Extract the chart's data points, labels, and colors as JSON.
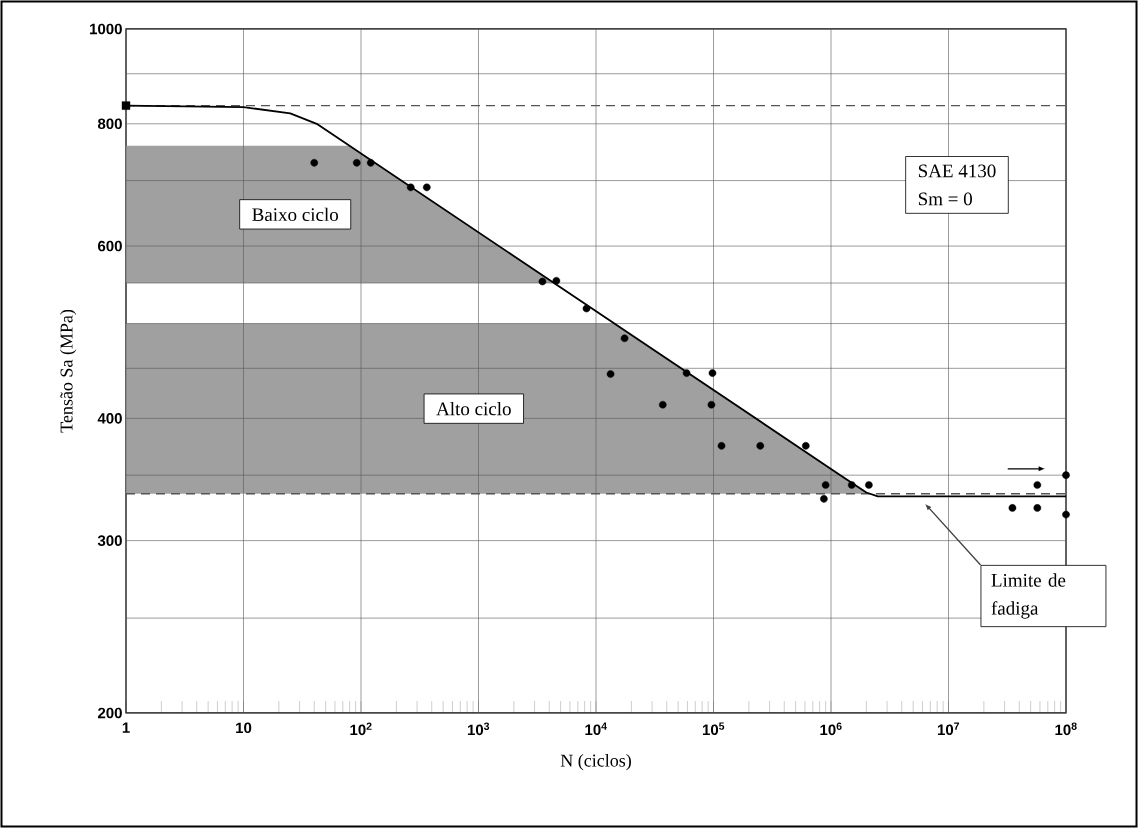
{
  "chart_data": {
    "type": "scatter",
    "xlabel": "N (ciclos)",
    "ylabel": "Tensão Sa (MPa)",
    "log": "xy",
    "grid": true,
    "xlim": [
      1,
      100000000
    ],
    "ylim": [
      200,
      1000
    ],
    "xticks": [
      1,
      10,
      {
        "value": 100,
        "label": "10$^{2}$"
      },
      {
        "value": 1000,
        "label": "10$^{3}$"
      },
      {
        "value": 10000,
        "label": "10$^{4}$"
      },
      {
        "value": 100000,
        "label": "10$^{5}$"
      },
      {
        "value": 1000000,
        "label": "10$^{6}$"
      },
      {
        "value": 10000000,
        "label": "10$^{7}$"
      },
      {
        "value": 100000000,
        "label": "10$^{8}$"
      }
    ],
    "yticks": [
      200,
      {
        "value": 250,
        "label": null
      },
      300,
      {
        "value": 350,
        "label": null
      },
      400,
      {
        "value": 450,
        "label": null
      },
      {
        "value": 500,
        "label": null
      },
      {
        "value": 550,
        "label": null
      },
      600,
      {
        "value": 700,
        "label": null
      },
      800,
      {
        "value": 900,
        "label": null
      },
      1000
    ],
    "series": [
      {
        "type": "line",
        "color": "#000000",
        "marker": "none",
        "line_style": "solid",
        "x": [
          1,
          10,
          25,
          42,
          1200000,
          2000000,
          2500000,
          100000000
        ],
        "values": [
          835,
          832,
          820,
          800,
          350,
          336,
          333,
          333
        ]
      },
      {
        "color": "#000000",
        "marker": "circle",
        "x": [
          40,
          92,
          121,
          265,
          363,
          3500,
          4600,
          8300,
          17500,
          13300,
          59000,
          98000,
          37000,
          96000,
          117000,
          250000,
          610000,
          900000,
          870000,
          1500000,
          2100000,
          35000000,
          57000000,
          57000000,
          100000000,
          100000000
        ],
        "values": [
          730,
          730,
          730,
          689,
          689,
          552,
          553,
          518,
          483,
          444,
          445,
          445,
          413,
          413,
          375,
          375,
          375,
          342,
          331,
          342,
          342,
          324,
          324,
          342,
          350,
          319
        ]
      },
      {
        "color": "#000000",
        "marker": "square",
        "x": [
          1
        ],
        "values": [
          835
        ]
      }
    ],
    "ref_lines": [
      {
        "axis": "y",
        "value": 835,
        "line_style": "dashed",
        "color": "#555555"
      },
      {
        "axis": "y",
        "value": 335,
        "line_style": "dashed",
        "color": "#555555"
      }
    ],
    "bands": [
      {
        "axis": "y",
        "from": 550,
        "to": 760,
        "label": "Baixo ciclo",
        "color": "#a0a0a0"
      },
      {
        "axis": "y",
        "from": 335,
        "to": 500,
        "label": "Alto ciclo",
        "color": "#a0a0a0"
      }
    ],
    "annotations": [
      "SAE 4130",
      "Sm = 0",
      "Limite de fadiga"
    ]
  }
}
